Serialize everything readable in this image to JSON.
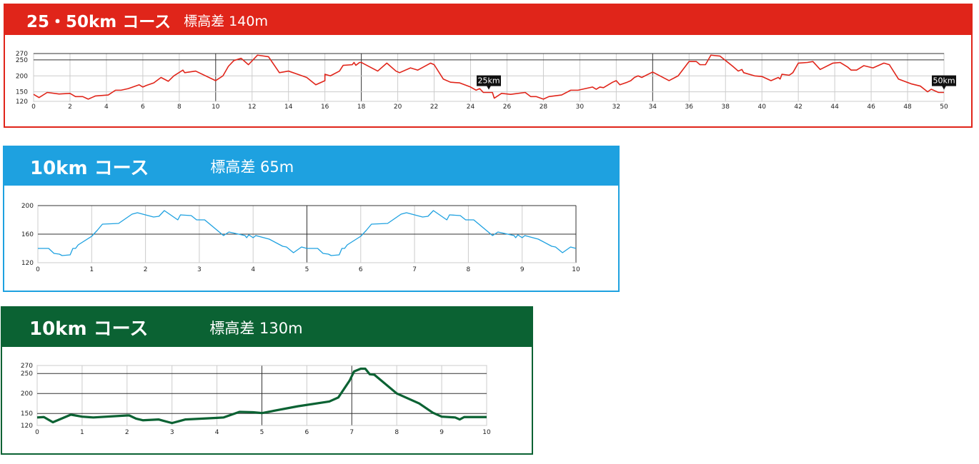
{
  "courses": [
    {
      "title": "25・50km コース",
      "subtitle": "標高差 140m",
      "color": "#e0251a"
    },
    {
      "title": "10km コース",
      "subtitle": "標高差 65m",
      "color": "#1ea1e0"
    },
    {
      "title": "10km コース",
      "subtitle": "標高差 130m",
      "color": "#0b6233"
    }
  ],
  "chart_data": [
    {
      "type": "line",
      "xlim": [
        0,
        50
      ],
      "ylim": [
        120,
        270
      ],
      "xticks": [
        0,
        2,
        4,
        6,
        8,
        10,
        12,
        14,
        16,
        18,
        20,
        22,
        24,
        26,
        28,
        30,
        32,
        34,
        36,
        38,
        40,
        42,
        44,
        46,
        48,
        50
      ],
      "yticks": [
        120,
        150,
        200,
        250,
        270
      ],
      "grid": true,
      "line_color": "#e0251a",
      "markers": [
        {
          "x": 25,
          "label": "25km"
        },
        {
          "x": 50,
          "label": "50km"
        }
      ],
      "points": [
        [
          0,
          142
        ],
        [
          0.3,
          132
        ],
        [
          0.75,
          148
        ],
        [
          1.4,
          143
        ],
        [
          2,
          145
        ],
        [
          2.3,
          135
        ],
        [
          2.7,
          135
        ],
        [
          3,
          127
        ],
        [
          3.4,
          137
        ],
        [
          4.1,
          140
        ],
        [
          4.5,
          155
        ],
        [
          4.8,
          155
        ],
        [
          5.2,
          160
        ],
        [
          5.8,
          172
        ],
        [
          6,
          165
        ],
        [
          6.2,
          170
        ],
        [
          6.6,
          178
        ],
        [
          7,
          195
        ],
        [
          7.4,
          183
        ],
        [
          7.7,
          200
        ],
        [
          8.2,
          218
        ],
        [
          8.3,
          210
        ],
        [
          8.9,
          215
        ],
        [
          10,
          185
        ],
        [
          10.4,
          200
        ],
        [
          10.7,
          230
        ],
        [
          11,
          248
        ],
        [
          11.4,
          255
        ],
        [
          11.8,
          235
        ],
        [
          12.3,
          265
        ],
        [
          12.9,
          260
        ],
        [
          13.5,
          210
        ],
        [
          14,
          215
        ],
        [
          14.5,
          205
        ],
        [
          15,
          195
        ],
        [
          15.5,
          172
        ],
        [
          16,
          185
        ],
        [
          16,
          205
        ],
        [
          16.3,
          200
        ],
        [
          16.8,
          215
        ],
        [
          17,
          233
        ],
        [
          17.5,
          235
        ],
        [
          17.6,
          242
        ],
        [
          17.7,
          233
        ],
        [
          17.9,
          242
        ],
        [
          18,
          242
        ],
        [
          18.9,
          215
        ],
        [
          19.4,
          240
        ],
        [
          19.9,
          215
        ],
        [
          20.1,
          210
        ],
        [
          20.7,
          225
        ],
        [
          21.1,
          218
        ],
        [
          21.8,
          240
        ],
        [
          22,
          235
        ],
        [
          22.5,
          190
        ],
        [
          22.9,
          180
        ],
        [
          23.4,
          178
        ],
        [
          24,
          165
        ],
        [
          24.3,
          155
        ],
        [
          24.5,
          160
        ],
        [
          24.7,
          148
        ],
        [
          25.2,
          148
        ],
        [
          25.3,
          130
        ],
        [
          25.7,
          145
        ],
        [
          26.2,
          142
        ],
        [
          27,
          148
        ],
        [
          27.3,
          135
        ],
        [
          27.6,
          135
        ],
        [
          28,
          127
        ],
        [
          28.3,
          135
        ],
        [
          29,
          140
        ],
        [
          29.5,
          155
        ],
        [
          29.9,
          155
        ],
        [
          30.7,
          165
        ],
        [
          30.9,
          158
        ],
        [
          31.1,
          165
        ],
        [
          31.3,
          163
        ],
        [
          31.8,
          180
        ],
        [
          32,
          185
        ],
        [
          32.2,
          172
        ],
        [
          32.6,
          180
        ],
        [
          32.8,
          185
        ],
        [
          33,
          195
        ],
        [
          33.2,
          200
        ],
        [
          33.4,
          195
        ],
        [
          34,
          212
        ],
        [
          34.9,
          185
        ],
        [
          35.4,
          200
        ],
        [
          35.8,
          230
        ],
        [
          36,
          245
        ],
        [
          36.4,
          245
        ],
        [
          36.6,
          235
        ],
        [
          36.9,
          235
        ],
        [
          37.2,
          265
        ],
        [
          37.7,
          262
        ],
        [
          38.4,
          230
        ],
        [
          38.7,
          215
        ],
        [
          38.9,
          220
        ],
        [
          39,
          210
        ],
        [
          39.6,
          200
        ],
        [
          40,
          198
        ],
        [
          40.5,
          185
        ],
        [
          40.9,
          195
        ],
        [
          41,
          190
        ],
        [
          41.1,
          205
        ],
        [
          41.5,
          202
        ],
        [
          41.7,
          210
        ],
        [
          42,
          240
        ],
        [
          42.5,
          242
        ],
        [
          42.8,
          245
        ],
        [
          43.2,
          220
        ],
        [
          43.9,
          240
        ],
        [
          44.3,
          242
        ],
        [
          44.7,
          228
        ],
        [
          44.9,
          218
        ],
        [
          45.2,
          218
        ],
        [
          45.6,
          232
        ],
        [
          46.1,
          225
        ],
        [
          46.7,
          240
        ],
        [
          47,
          235
        ],
        [
          47.5,
          190
        ],
        [
          48.2,
          175
        ],
        [
          48.7,
          168
        ],
        [
          49.1,
          150
        ],
        [
          49.3,
          158
        ],
        [
          49.7,
          148
        ],
        [
          50,
          148
        ]
      ]
    },
    {
      "type": "line",
      "xlim": [
        0,
        10
      ],
      "ylim": [
        120,
        200
      ],
      "xticks": [
        0,
        1,
        2,
        3,
        4,
        5,
        6,
        7,
        8,
        9,
        10
      ],
      "yticks": [
        120,
        160,
        200
      ],
      "grid": true,
      "line_color": "#1ea1e0",
      "points": [
        [
          0,
          140
        ],
        [
          0.2,
          140
        ],
        [
          0.3,
          133
        ],
        [
          0.4,
          132
        ],
        [
          0.45,
          130
        ],
        [
          0.6,
          131
        ],
        [
          0.65,
          140
        ],
        [
          0.7,
          140
        ],
        [
          0.75,
          145
        ],
        [
          1,
          157
        ],
        [
          1.1,
          165
        ],
        [
          1.2,
          174
        ],
        [
          1.5,
          175
        ],
        [
          1.75,
          188
        ],
        [
          1.85,
          190
        ],
        [
          2,
          187
        ],
        [
          2.15,
          184
        ],
        [
          2.25,
          185
        ],
        [
          2.35,
          193
        ],
        [
          2.6,
          180
        ],
        [
          2.65,
          187
        ],
        [
          2.85,
          186
        ],
        [
          2.95,
          180
        ],
        [
          3.1,
          180
        ],
        [
          3.45,
          158
        ],
        [
          3.55,
          163
        ],
        [
          3.85,
          158
        ],
        [
          3.88,
          155
        ],
        [
          3.92,
          159
        ],
        [
          4,
          155
        ],
        [
          4.05,
          158
        ],
        [
          4.3,
          153
        ],
        [
          4.55,
          143
        ],
        [
          4.62,
          142
        ],
        [
          4.75,
          134
        ],
        [
          4.9,
          142
        ],
        [
          5,
          140
        ],
        [
          5.2,
          140
        ],
        [
          5.3,
          133
        ],
        [
          5.4,
          132
        ],
        [
          5.45,
          130
        ],
        [
          5.6,
          131
        ],
        [
          5.65,
          140
        ],
        [
          5.7,
          140
        ],
        [
          5.75,
          145
        ],
        [
          6,
          157
        ],
        [
          6.1,
          165
        ],
        [
          6.2,
          174
        ],
        [
          6.5,
          175
        ],
        [
          6.75,
          188
        ],
        [
          6.85,
          190
        ],
        [
          7,
          187
        ],
        [
          7.15,
          184
        ],
        [
          7.25,
          185
        ],
        [
          7.35,
          193
        ],
        [
          7.6,
          180
        ],
        [
          7.65,
          187
        ],
        [
          7.85,
          186
        ],
        [
          7.95,
          180
        ],
        [
          8.1,
          180
        ],
        [
          8.45,
          158
        ],
        [
          8.55,
          163
        ],
        [
          8.85,
          158
        ],
        [
          8.88,
          155
        ],
        [
          8.92,
          159
        ],
        [
          9,
          155
        ],
        [
          9.05,
          158
        ],
        [
          9.3,
          153
        ],
        [
          9.55,
          143
        ],
        [
          9.62,
          142
        ],
        [
          9.75,
          134
        ],
        [
          9.9,
          142
        ],
        [
          10,
          140
        ]
      ]
    },
    {
      "type": "line",
      "xlim": [
        0,
        10
      ],
      "ylim": [
        120,
        270
      ],
      "xticks": [
        0,
        1,
        2,
        3,
        4,
        5,
        6,
        7,
        8,
        9,
        10
      ],
      "yticks": [
        120,
        150,
        200,
        250,
        270
      ],
      "grid": true,
      "line_color": "#0b6233",
      "points": [
        [
          0,
          140
        ],
        [
          0.15,
          141
        ],
        [
          0.35,
          128
        ],
        [
          0.75,
          147
        ],
        [
          1,
          142
        ],
        [
          1.25,
          140
        ],
        [
          2,
          145
        ],
        [
          2.05,
          145
        ],
        [
          2.2,
          137
        ],
        [
          2.35,
          133
        ],
        [
          2.7,
          135
        ],
        [
          2.8,
          132
        ],
        [
          3,
          126
        ],
        [
          3.3,
          135
        ],
        [
          4,
          139
        ],
        [
          4.15,
          140
        ],
        [
          4.5,
          154
        ],
        [
          4.8,
          153
        ],
        [
          5,
          151
        ],
        [
          5.8,
          168
        ],
        [
          6.5,
          180
        ],
        [
          6.7,
          190
        ],
        [
          6.95,
          232
        ],
        [
          7.05,
          255
        ],
        [
          7.2,
          262
        ],
        [
          7.3,
          262
        ],
        [
          7.4,
          248
        ],
        [
          7.5,
          247
        ],
        [
          8,
          200
        ],
        [
          8.5,
          175
        ],
        [
          8.8,
          152
        ],
        [
          9,
          142
        ],
        [
          9.3,
          140
        ],
        [
          9.4,
          135
        ],
        [
          9.5,
          141
        ],
        [
          10,
          141
        ]
      ]
    }
  ]
}
